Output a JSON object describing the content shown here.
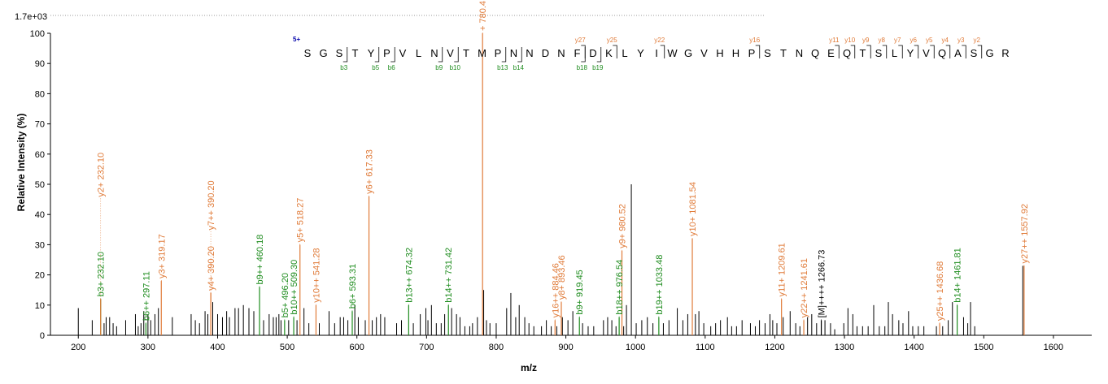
{
  "chart_data": {
    "type": "bar",
    "scale_label": "1.7e+03",
    "xlabel": "m/z",
    "ylabel": "Relative   Intensity (%)",
    "xlim": [
      160,
      1655
    ],
    "ylim": [
      0,
      100
    ],
    "x_ticks": [
      200,
      300,
      400,
      500,
      600,
      700,
      800,
      900,
      1000,
      1100,
      1200,
      1300,
      1400,
      1500,
      1600
    ],
    "y_ticks": [
      0,
      10,
      20,
      30,
      40,
      50,
      60,
      70,
      80,
      90,
      100
    ],
    "colors": {
      "y_ion": "#e07b39",
      "b_ion": "#1e8c1e",
      "other": "#000000",
      "charge": "#0000aa"
    },
    "labeled_peaks": [
      {
        "mz": 232.1,
        "intensity": 12,
        "label": "b3+ 232.10",
        "ion": "b"
      },
      {
        "mz": 232.1,
        "intensity": 12,
        "label": "y2+ 232.10",
        "ion": "y",
        "label_at": 45
      },
      {
        "mz": 297.11,
        "intensity": 4,
        "label": "b6++ 297.11",
        "ion": "b",
        "label_at": 4
      },
      {
        "mz": 319.17,
        "intensity": 18,
        "label": "y3+ 319.17",
        "ion": "y"
      },
      {
        "mz": 390.2,
        "intensity": 14,
        "label": "y4+ 390.20",
        "ion": "y"
      },
      {
        "mz": 390.2,
        "intensity": 14,
        "label": "y7++ 390.20",
        "ion": "y",
        "label_at": 34
      },
      {
        "mz": 460.18,
        "intensity": 16,
        "label": "b9++ 460.18",
        "ion": "b"
      },
      {
        "mz": 496.2,
        "intensity": 5,
        "label": "b5+ 496.20",
        "ion": "b"
      },
      {
        "mz": 509.3,
        "intensity": 6,
        "label": "b10++ 509.30",
        "ion": "b"
      },
      {
        "mz": 518.27,
        "intensity": 30,
        "label": "y5+ 518.27",
        "ion": "y"
      },
      {
        "mz": 541.28,
        "intensity": 10,
        "label": "y10++ 541.28",
        "ion": "y"
      },
      {
        "mz": 593.31,
        "intensity": 8,
        "label": "b6+ 593.31",
        "ion": "b"
      },
      {
        "mz": 617.33,
        "intensity": 46,
        "label": "y6+ 617.33",
        "ion": "y"
      },
      {
        "mz": 674.32,
        "intensity": 10,
        "label": "b13++ 674.32",
        "ion": "b"
      },
      {
        "mz": 731.42,
        "intensity": 10,
        "label": "b14++ 731.42",
        "ion": "b"
      },
      {
        "mz": 780.4,
        "intensity": 100,
        "label": "+ 780.4",
        "ion": "y"
      },
      {
        "mz": 884.46,
        "intensity": 5,
        "label": "y16++ 884.46",
        "ion": "y"
      },
      {
        "mz": 893.46,
        "intensity": 11,
        "label": "y8+ 893.46",
        "ion": "y"
      },
      {
        "mz": 919.45,
        "intensity": 6,
        "label": "b9+ 919.45",
        "ion": "b"
      },
      {
        "mz": 976.54,
        "intensity": 6,
        "label": "b18++ 976.54",
        "ion": "b"
      },
      {
        "mz": 980.52,
        "intensity": 28,
        "label": "y9+ 980.52",
        "ion": "y"
      },
      {
        "mz": 1033.48,
        "intensity": 6,
        "label": "b19++ 1033.48",
        "ion": "b"
      },
      {
        "mz": 1081.54,
        "intensity": 32,
        "label": "y10+ 1081.54",
        "ion": "y"
      },
      {
        "mz": 1209.61,
        "intensity": 12,
        "label": "y11+ 1209.61",
        "ion": "y"
      },
      {
        "mz": 1241.61,
        "intensity": 5,
        "label": "y22++ 1241.61",
        "ion": "y"
      },
      {
        "mz": 1266.73,
        "intensity": 5,
        "label": "[M]++++ 1266.73",
        "ion": "other"
      },
      {
        "mz": 1436.68,
        "intensity": 4,
        "label": "y25++ 1436.68",
        "ion": "y"
      },
      {
        "mz": 1461.81,
        "intensity": 10,
        "label": "b14+ 1461.81",
        "ion": "b"
      },
      {
        "mz": 1557.92,
        "intensity": 23,
        "label": "y27++ 1557.92",
        "ion": "y"
      }
    ],
    "unlabeled_peaks": [
      [
        200,
        9
      ],
      [
        220,
        5
      ],
      [
        237,
        4
      ],
      [
        240,
        6
      ],
      [
        245,
        6
      ],
      [
        250,
        4
      ],
      [
        255,
        3
      ],
      [
        268,
        5
      ],
      [
        282,
        7
      ],
      [
        286,
        3
      ],
      [
        290,
        4
      ],
      [
        294,
        8
      ],
      [
        300,
        7
      ],
      [
        304,
        5
      ],
      [
        310,
        7
      ],
      [
        315,
        9
      ],
      [
        335,
        6
      ],
      [
        362,
        7
      ],
      [
        368,
        5
      ],
      [
        374,
        4
      ],
      [
        382,
        8
      ],
      [
        386,
        7
      ],
      [
        393,
        11
      ],
      [
        400,
        7
      ],
      [
        407,
        6
      ],
      [
        413,
        8
      ],
      [
        417,
        6
      ],
      [
        425,
        9
      ],
      [
        430,
        9
      ],
      [
        437,
        10
      ],
      [
        445,
        9
      ],
      [
        452,
        8
      ],
      [
        466,
        5
      ],
      [
        474,
        7
      ],
      [
        480,
        6
      ],
      [
        484,
        6
      ],
      [
        488,
        7
      ],
      [
        491,
        5
      ],
      [
        502,
        5
      ],
      [
        514,
        5
      ],
      [
        524,
        9
      ],
      [
        531,
        4
      ],
      [
        546,
        4
      ],
      [
        560,
        8
      ],
      [
        568,
        4
      ],
      [
        576,
        6
      ],
      [
        581,
        6
      ],
      [
        587,
        5
      ],
      [
        597,
        10
      ],
      [
        602,
        6
      ],
      [
        612,
        5
      ],
      [
        622,
        5
      ],
      [
        628,
        6
      ],
      [
        634,
        7
      ],
      [
        640,
        6
      ],
      [
        657,
        4
      ],
      [
        664,
        5
      ],
      [
        681,
        4
      ],
      [
        691,
        7
      ],
      [
        699,
        9
      ],
      [
        702,
        5
      ],
      [
        707,
        10
      ],
      [
        714,
        4
      ],
      [
        721,
        4
      ],
      [
        726,
        7
      ],
      [
        736,
        9
      ],
      [
        743,
        7
      ],
      [
        748,
        6
      ],
      [
        755,
        3
      ],
      [
        762,
        3
      ],
      [
        766,
        4
      ],
      [
        773,
        6
      ],
      [
        782,
        15
      ],
      [
        786,
        5
      ],
      [
        791,
        4
      ],
      [
        800,
        4
      ],
      [
        815,
        9
      ],
      [
        821,
        14
      ],
      [
        828,
        6
      ],
      [
        833,
        10
      ],
      [
        841,
        6
      ],
      [
        847,
        4
      ],
      [
        854,
        3
      ],
      [
        865,
        3
      ],
      [
        872,
        5
      ],
      [
        879,
        3
      ],
      [
        887,
        3
      ],
      [
        895,
        6
      ],
      [
        903,
        5
      ],
      [
        910,
        8
      ],
      [
        924,
        4
      ],
      [
        932,
        3
      ],
      [
        940,
        3
      ],
      [
        954,
        5
      ],
      [
        960,
        6
      ],
      [
        966,
        5
      ],
      [
        972,
        3
      ],
      [
        983,
        3
      ],
      [
        987,
        10
      ],
      [
        994,
        50
      ],
      [
        1001,
        4
      ],
      [
        1009,
        5
      ],
      [
        1017,
        6
      ],
      [
        1025,
        4
      ],
      [
        1040,
        4
      ],
      [
        1048,
        5
      ],
      [
        1060,
        9
      ],
      [
        1068,
        5
      ],
      [
        1075,
        7
      ],
      [
        1086,
        7
      ],
      [
        1091,
        8
      ],
      [
        1098,
        4
      ],
      [
        1108,
        3
      ],
      [
        1115,
        4
      ],
      [
        1122,
        5
      ],
      [
        1132,
        6
      ],
      [
        1138,
        3
      ],
      [
        1145,
        3
      ],
      [
        1153,
        5
      ],
      [
        1165,
        4
      ],
      [
        1172,
        3
      ],
      [
        1178,
        5
      ],
      [
        1186,
        4
      ],
      [
        1193,
        7
      ],
      [
        1197,
        5
      ],
      [
        1203,
        4
      ],
      [
        1212,
        6
      ],
      [
        1222,
        8
      ],
      [
        1230,
        4
      ],
      [
        1236,
        3
      ],
      [
        1247,
        6
      ],
      [
        1253,
        7
      ],
      [
        1260,
        4
      ],
      [
        1272,
        5
      ],
      [
        1280,
        4
      ],
      [
        1286,
        2
      ],
      [
        1299,
        4
      ],
      [
        1305,
        9
      ],
      [
        1312,
        7
      ],
      [
        1318,
        3
      ],
      [
        1326,
        3
      ],
      [
        1334,
        3
      ],
      [
        1342,
        10
      ],
      [
        1350,
        3
      ],
      [
        1358,
        3
      ],
      [
        1363,
        11
      ],
      [
        1369,
        7
      ],
      [
        1378,
        5
      ],
      [
        1384,
        4
      ],
      [
        1392,
        8
      ],
      [
        1398,
        3
      ],
      [
        1406,
        3
      ],
      [
        1414,
        3
      ],
      [
        1432,
        3
      ],
      [
        1441,
        3
      ],
      [
        1449,
        5
      ],
      [
        1455,
        11
      ],
      [
        1471,
        6
      ],
      [
        1477,
        4
      ],
      [
        1481,
        11
      ],
      [
        1487,
        3
      ],
      [
        1556,
        23
      ]
    ],
    "sequence": {
      "charge_label": "5+",
      "residues": [
        "S",
        "G",
        "S",
        "T",
        "Y",
        "P",
        "V",
        "L",
        "N",
        "V",
        "T",
        "M",
        "P",
        "N",
        "N",
        "D",
        "N",
        "F",
        "D",
        "K",
        "L",
        "Y",
        "I",
        "W",
        "G",
        "V",
        "H",
        "H",
        "P",
        "S",
        "T",
        "N",
        "Q",
        "E",
        "Q",
        "T",
        "S",
        "L",
        "Y",
        "V",
        "Q",
        "A",
        "S",
        "G",
        "R"
      ],
      "y_markers": [
        {
          "after": 18,
          "label": "y27"
        },
        {
          "after": 20,
          "label": "y25"
        },
        {
          "after": 23,
          "label": "y22"
        },
        {
          "after": 29,
          "label": "y16"
        },
        {
          "after": 34,
          "label": "y11"
        },
        {
          "after": 35,
          "label": "y10"
        },
        {
          "after": 36,
          "label": "y9"
        },
        {
          "after": 37,
          "label": "y8"
        },
        {
          "after": 38,
          "label": "y7"
        },
        {
          "after": 39,
          "label": "y6"
        },
        {
          "after": 40,
          "label": "y5"
        },
        {
          "after": 41,
          "label": "y4"
        },
        {
          "after": 42,
          "label": "y3"
        },
        {
          "after": 43,
          "label": "y2"
        }
      ],
      "b_markers": [
        {
          "after": 3,
          "label": "b3"
        },
        {
          "after": 5,
          "label": "b5"
        },
        {
          "after": 6,
          "label": "b6"
        },
        {
          "after": 9,
          "label": "b9"
        },
        {
          "after": 10,
          "label": "b10"
        },
        {
          "after": 13,
          "label": "b13"
        },
        {
          "after": 14,
          "label": "b14"
        },
        {
          "after": 18,
          "label": "b18"
        },
        {
          "after": 19,
          "label": "b19"
        }
      ]
    }
  }
}
